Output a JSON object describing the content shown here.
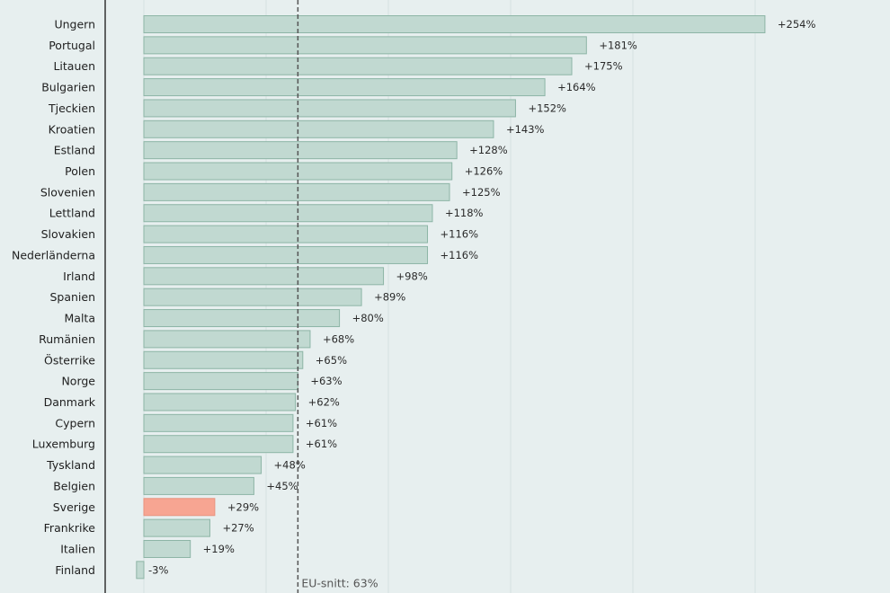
{
  "chart_data": {
    "type": "bar",
    "orientation": "horizontal",
    "title": "",
    "xlabel": "",
    "ylabel": "",
    "categories": [
      "Ungern",
      "Portugal",
      "Litauen",
      "Bulgarien",
      "Tjeckien",
      "Kroatien",
      "Estland",
      "Polen",
      "Slovenien",
      "Lettland",
      "Slovakien",
      "Nederländerna",
      "Irland",
      "Spanien",
      "Malta",
      "Rumänien",
      "Österrike",
      "Norge",
      "Danmark",
      "Cypern",
      "Luxemburg",
      "Tyskland",
      "Belgien",
      "Sverige",
      "Frankrike",
      "Italien",
      "Finland"
    ],
    "values": [
      254,
      181,
      175,
      164,
      152,
      143,
      128,
      126,
      125,
      118,
      116,
      116,
      98,
      89,
      80,
      68,
      65,
      63,
      62,
      61,
      61,
      48,
      45,
      29,
      27,
      19,
      -3
    ],
    "value_labels": [
      "+254%",
      "+181%",
      "+175%",
      "+164%",
      "+152%",
      "+143%",
      "+128%",
      "+126%",
      "+125%",
      "+118%",
      "+116%",
      "+116%",
      "+98%",
      "+89%",
      "+80%",
      "+68%",
      "+65%",
      "+63%",
      "+62%",
      "+61%",
      "+61%",
      "+48%",
      "+45%",
      "+29%",
      "+27%",
      "+19%",
      "-3%"
    ],
    "highlight": "Sverige",
    "colors": {
      "bar": "#c1d9d1",
      "bar_edge": "#8db5a6",
      "highlight": "#f7a592",
      "highlight_edge": "#e8937f",
      "background": "#e7efef",
      "grid": "#d6e2e1",
      "reference_line": "#555555"
    },
    "grid": true,
    "reference_line": {
      "value": 63,
      "label": "EU-snitt: 63%"
    }
  }
}
